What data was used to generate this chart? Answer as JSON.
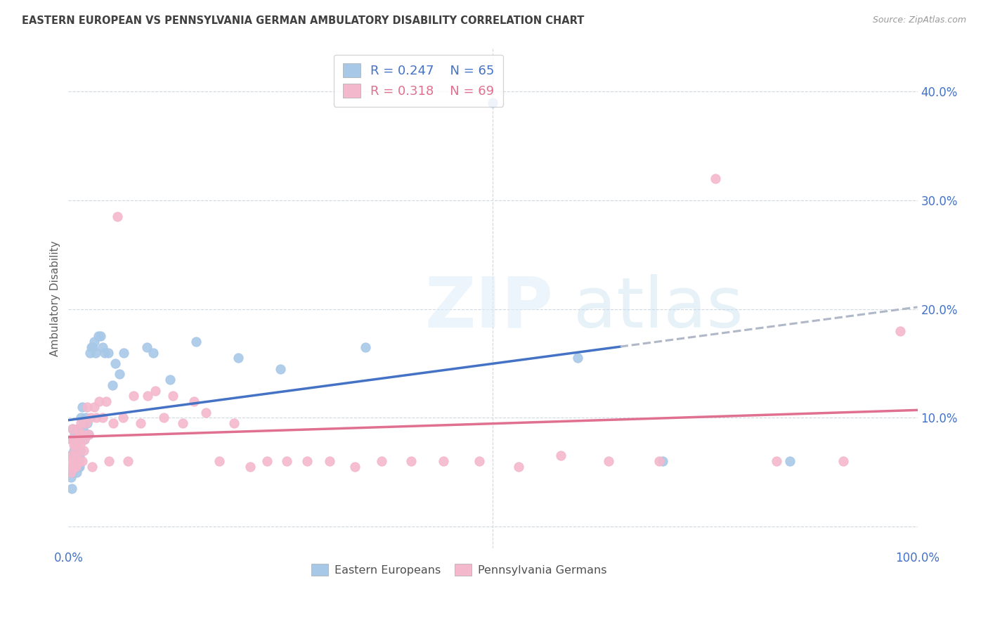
{
  "title": "EASTERN EUROPEAN VS PENNSYLVANIA GERMAN AMBULATORY DISABILITY CORRELATION CHART",
  "source": "Source: ZipAtlas.com",
  "ylabel": "Ambulatory Disability",
  "xlim": [
    0.0,
    1.0
  ],
  "ylim": [
    -0.02,
    0.44
  ],
  "yticks": [
    0.0,
    0.1,
    0.2,
    0.3,
    0.4
  ],
  "ytick_labels_right": [
    "",
    "10.0%",
    "20.0%",
    "30.0%",
    "40.0%"
  ],
  "xtick_left": "0.0%",
  "xtick_right": "100.0%",
  "blue_R": 0.247,
  "blue_N": 65,
  "pink_R": 0.318,
  "pink_N": 69,
  "blue_color": "#a8c8e8",
  "pink_color": "#f4b8cc",
  "blue_line_color": "#4472c4",
  "pink_line_color": "#e07090",
  "dash_line_color": "#b0b8c8",
  "legend_label_blue": "Eastern Europeans",
  "legend_label_pink": "Pennsylvania Germans",
  "background_color": "#ffffff",
  "grid_color": "#d0d8e0",
  "title_color": "#404040",
  "axis_label_color": "#4472c4",
  "ylabel_color": "#606060",
  "blue_x": [
    0.002,
    0.003,
    0.003,
    0.004,
    0.004,
    0.005,
    0.005,
    0.005,
    0.006,
    0.006,
    0.006,
    0.007,
    0.007,
    0.007,
    0.008,
    0.008,
    0.008,
    0.009,
    0.009,
    0.009,
    0.01,
    0.01,
    0.01,
    0.011,
    0.011,
    0.012,
    0.012,
    0.013,
    0.013,
    0.014,
    0.015,
    0.015,
    0.016,
    0.017,
    0.018,
    0.019,
    0.02,
    0.021,
    0.022,
    0.024,
    0.025,
    0.027,
    0.029,
    0.03,
    0.032,
    0.035,
    0.038,
    0.04,
    0.043,
    0.047,
    0.052,
    0.055,
    0.06,
    0.065,
    0.092,
    0.1,
    0.12,
    0.15,
    0.2,
    0.25,
    0.35,
    0.5,
    0.6,
    0.7,
    0.85
  ],
  "blue_y": [
    0.065,
    0.045,
    0.05,
    0.08,
    0.035,
    0.09,
    0.065,
    0.05,
    0.07,
    0.08,
    0.055,
    0.085,
    0.06,
    0.055,
    0.075,
    0.07,
    0.06,
    0.08,
    0.065,
    0.058,
    0.075,
    0.058,
    0.05,
    0.09,
    0.06,
    0.08,
    0.055,
    0.065,
    0.055,
    0.07,
    0.1,
    0.085,
    0.11,
    0.09,
    0.095,
    0.08,
    0.1,
    0.085,
    0.095,
    0.085,
    0.16,
    0.165,
    0.165,
    0.17,
    0.16,
    0.175,
    0.175,
    0.165,
    0.16,
    0.16,
    0.13,
    0.15,
    0.14,
    0.16,
    0.165,
    0.16,
    0.135,
    0.17,
    0.155,
    0.145,
    0.165,
    0.39,
    0.155,
    0.06,
    0.06
  ],
  "pink_x": [
    0.002,
    0.003,
    0.003,
    0.004,
    0.005,
    0.005,
    0.006,
    0.006,
    0.007,
    0.007,
    0.008,
    0.008,
    0.009,
    0.009,
    0.01,
    0.01,
    0.011,
    0.012,
    0.013,
    0.014,
    0.015,
    0.016,
    0.017,
    0.018,
    0.019,
    0.02,
    0.022,
    0.024,
    0.026,
    0.028,
    0.03,
    0.033,
    0.036,
    0.04,
    0.044,
    0.048,
    0.053,
    0.058,
    0.064,
    0.07,
    0.077,
    0.085,
    0.093,
    0.102,
    0.112,
    0.123,
    0.135,
    0.148,
    0.162,
    0.178,
    0.195,
    0.214,
    0.234,
    0.257,
    0.281,
    0.308,
    0.337,
    0.369,
    0.404,
    0.442,
    0.484,
    0.53,
    0.58,
    0.636,
    0.696,
    0.762,
    0.834,
    0.913,
    0.98
  ],
  "pink_y": [
    0.06,
    0.08,
    0.05,
    0.065,
    0.09,
    0.055,
    0.075,
    0.06,
    0.08,
    0.055,
    0.07,
    0.06,
    0.075,
    0.055,
    0.08,
    0.065,
    0.09,
    0.085,
    0.06,
    0.075,
    0.095,
    0.06,
    0.085,
    0.07,
    0.08,
    0.095,
    0.11,
    0.085,
    0.1,
    0.055,
    0.11,
    0.1,
    0.115,
    0.1,
    0.115,
    0.06,
    0.095,
    0.285,
    0.1,
    0.06,
    0.12,
    0.095,
    0.12,
    0.125,
    0.1,
    0.12,
    0.095,
    0.115,
    0.105,
    0.06,
    0.095,
    0.055,
    0.06,
    0.06,
    0.06,
    0.06,
    0.055,
    0.06,
    0.06,
    0.06,
    0.06,
    0.055,
    0.065,
    0.06,
    0.06,
    0.32,
    0.06,
    0.06,
    0.18
  ]
}
